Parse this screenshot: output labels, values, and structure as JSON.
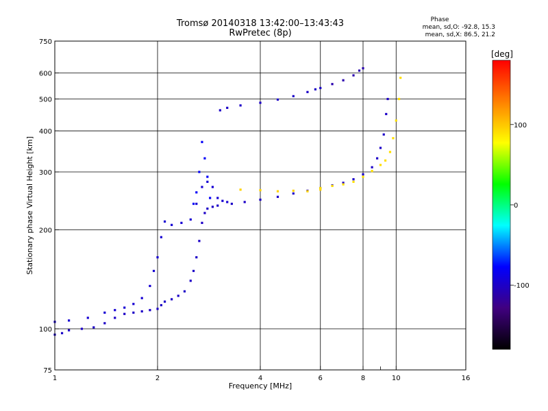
{
  "chart_data": {
    "type": "scatter",
    "title": "Tromsø 20140318 13:42:00–13:43:43",
    "subtitle": "RwPretec (8p)",
    "xlabel": "Frequency [MHz]",
    "ylabel": "Stationary phase Virtual Height [km]",
    "x_scale": "log",
    "y_scale": "log",
    "xlim": [
      1,
      16
    ],
    "ylim": [
      75,
      750
    ],
    "x_ticks": [
      1,
      2,
      4,
      6,
      8,
      10,
      16
    ],
    "x_minor_ticks": [
      9
    ],
    "y_ticks": [
      75,
      100,
      200,
      300,
      400,
      500,
      600,
      750
    ],
    "grid": true,
    "stats": {
      "heading": "Phase",
      "line_o": "mean, sd,O:  -92.8, 15.3",
      "line_x": "mean, sd,X:   86.5, 21.2"
    },
    "colorbar": {
      "label": "[deg]",
      "range": [
        -180,
        180
      ],
      "ticks": [
        100,
        0,
        -100
      ],
      "colors": [
        "#ff0000",
        "#ff8000",
        "#ffff00",
        "#00ff00",
        "#00ffff",
        "#0000ff",
        "#400080",
        "#000000"
      ]
    },
    "series": [
      {
        "values": [
          [
            1.0,
            96
          ],
          [
            1.05,
            97
          ],
          [
            1.1,
            99
          ],
          [
            1.2,
            100
          ],
          [
            1.3,
            101
          ],
          [
            1.4,
            104
          ],
          [
            1.5,
            108
          ],
          [
            1.6,
            111
          ],
          [
            1.7,
            112
          ],
          [
            1.8,
            113
          ],
          [
            1.9,
            114
          ],
          [
            2.0,
            115
          ],
          [
            2.05,
            118
          ],
          [
            2.1,
            121
          ],
          [
            2.2,
            123
          ],
          [
            2.3,
            126
          ],
          [
            2.4,
            130
          ],
          [
            2.5,
            140
          ],
          [
            2.55,
            150
          ],
          [
            2.6,
            165
          ],
          [
            2.65,
            185
          ],
          [
            2.7,
            210
          ],
          [
            2.75,
            225
          ],
          [
            2.8,
            232
          ],
          [
            2.9,
            235
          ],
          [
            3.0,
            237
          ],
          [
            3.3,
            240
          ],
          [
            3.6,
            243
          ],
          [
            4.0,
            247
          ],
          [
            4.5,
            252
          ],
          [
            5.0,
            258
          ],
          [
            5.5,
            263
          ],
          [
            6.0,
            268
          ],
          [
            6.5,
            273
          ],
          [
            7.0,
            278
          ],
          [
            7.5,
            285
          ],
          [
            8.0,
            295
          ],
          [
            8.5,
            310
          ],
          [
            8.8,
            330
          ],
          [
            9.0,
            355
          ],
          [
            9.2,
            390
          ],
          [
            9.35,
            450
          ],
          [
            9.45,
            500
          ]
        ],
        "phase": -100
      },
      {
        "values": [
          [
            1.0,
            105
          ],
          [
            1.1,
            106
          ],
          [
            1.25,
            108
          ],
          [
            1.4,
            112
          ],
          [
            1.5,
            114
          ],
          [
            1.6,
            116
          ],
          [
            1.7,
            119
          ],
          [
            1.8,
            124
          ],
          [
            1.9,
            135
          ],
          [
            1.95,
            150
          ],
          [
            2.0,
            165
          ],
          [
            2.05,
            190
          ],
          [
            2.1,
            212
          ],
          [
            2.2,
            207
          ],
          [
            2.35,
            210
          ],
          [
            2.5,
            215
          ],
          [
            2.6,
            240
          ],
          [
            2.7,
            270
          ],
          [
            2.8,
            280
          ],
          [
            2.9,
            270
          ],
          [
            3.0,
            250
          ],
          [
            3.1,
            245
          ],
          [
            3.2,
            243
          ]
        ],
        "phase": -95
      },
      {
        "values": [
          [
            3.05,
            462
          ],
          [
            3.2,
            470
          ],
          [
            3.5,
            478
          ],
          [
            4.0,
            487
          ],
          [
            4.5,
            498
          ],
          [
            5.0,
            510
          ],
          [
            5.5,
            525
          ],
          [
            5.8,
            535
          ],
          [
            6.0,
            540
          ]
        ],
        "phase": -100
      },
      {
        "values": [
          [
            6.5,
            555
          ],
          [
            7.0,
            570
          ],
          [
            7.5,
            590
          ],
          [
            7.8,
            610
          ],
          [
            8.0,
            620
          ]
        ],
        "phase": -110
      },
      {
        "values": [
          [
            3.5,
            265
          ],
          [
            4.0,
            264
          ],
          [
            4.5,
            262
          ],
          [
            5.0,
            263
          ],
          [
            5.5,
            262
          ],
          [
            6.0,
            265
          ]
        ],
        "phase": 95
      },
      {
        "values": [
          [
            6.0,
            268
          ],
          [
            6.5,
            272
          ],
          [
            7.0,
            275
          ],
          [
            7.5,
            280
          ],
          [
            8.0,
            290
          ],
          [
            8.5,
            302
          ],
          [
            9.0,
            315
          ],
          [
            9.3,
            325
          ],
          [
            9.6,
            345
          ],
          [
            9.8,
            380
          ],
          [
            10.0,
            430
          ],
          [
            10.2,
            500
          ],
          [
            10.3,
            580
          ]
        ],
        "phase": 90
      },
      {
        "values": [
          [
            2.55,
            240
          ],
          [
            2.6,
            260
          ],
          [
            2.65,
            300
          ],
          [
            2.7,
            370
          ],
          [
            2.75,
            330
          ],
          [
            2.8,
            290
          ],
          [
            2.85,
            250
          ]
        ],
        "phase": -80
      }
    ]
  }
}
